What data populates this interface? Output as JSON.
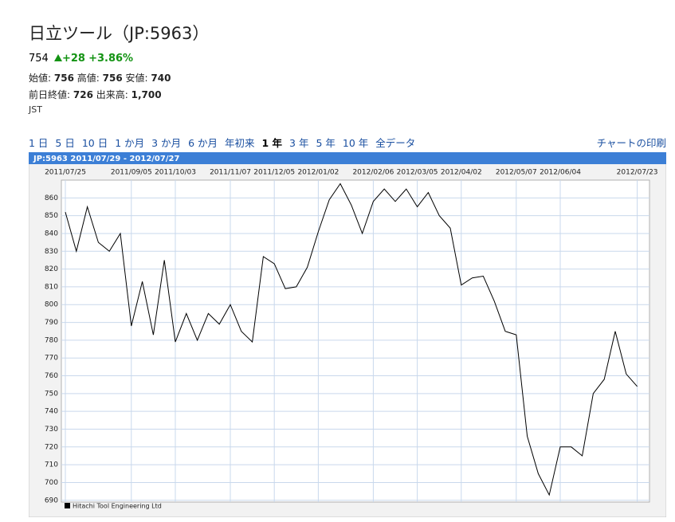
{
  "header": {
    "title": "日立ツール（JP:5963）",
    "price": "754",
    "change": "+28",
    "change_pct": "+3.86%",
    "stats": [
      [
        {
          "label": "始値:",
          "value": "756"
        },
        {
          "label": "高値:",
          "value": "756"
        },
        {
          "label": "安値:",
          "value": "740"
        }
      ],
      [
        {
          "label": "前日終値:",
          "value": "726"
        },
        {
          "label": "出来高:",
          "value": "1,700"
        }
      ]
    ],
    "timezone": "JST"
  },
  "ranges": {
    "items": [
      "1 日",
      "5 日",
      "10 日",
      "1 か月",
      "3 か月",
      "6 か月",
      "年初来",
      "1 年",
      "3 年",
      "5 年",
      "10 年",
      "全データ"
    ],
    "selected": 7,
    "print": "チャートの印刷"
  },
  "chart_data": {
    "type": "line",
    "title": "JP:5963 2011/07/29 - 2012/07/27",
    "x": [
      "2011/07/25",
      "2011/08/01",
      "2011/08/08",
      "2011/08/15",
      "2011/08/22",
      "2011/08/29",
      "2011/09/05",
      "2011/09/12",
      "2011/09/19",
      "2011/09/26",
      "2011/10/03",
      "2011/10/10",
      "2011/10/17",
      "2011/10/24",
      "2011/10/31",
      "2011/11/07",
      "2011/11/14",
      "2011/11/21",
      "2011/11/28",
      "2011/12/05",
      "2011/12/12",
      "2011/12/19",
      "2011/12/26",
      "2012/01/02",
      "2012/01/09",
      "2012/01/16",
      "2012/01/23",
      "2012/01/30",
      "2012/02/06",
      "2012/02/13",
      "2012/02/20",
      "2012/02/27",
      "2012/03/05",
      "2012/03/12",
      "2012/03/19",
      "2012/03/26",
      "2012/04/02",
      "2012/04/09",
      "2012/04/16",
      "2012/04/23",
      "2012/04/30",
      "2012/05/07",
      "2012/05/14",
      "2012/05/21",
      "2012/05/28",
      "2012/06/04",
      "2012/06/11",
      "2012/06/18",
      "2012/06/25",
      "2012/07/02",
      "2012/07/09",
      "2012/07/16",
      "2012/07/23"
    ],
    "series": [
      {
        "name": "Hitachi Tool Engineering Ltd",
        "color": "#000000",
        "values": [
          852,
          830,
          855,
          835,
          830,
          840,
          788,
          813,
          783,
          825,
          779,
          795,
          780,
          795,
          789,
          800,
          785,
          779,
          827,
          823,
          809,
          810,
          821,
          841,
          859,
          868,
          856,
          840,
          858,
          865,
          858,
          865,
          855,
          863,
          850,
          843,
          811,
          815,
          816,
          802,
          785,
          783,
          726,
          705,
          693,
          720,
          720,
          715,
          750,
          758,
          785,
          761,
          754
        ]
      }
    ],
    "xticks": [
      "2011/07/25",
      "2011/09/05",
      "2011/10/03",
      "2011/11/07",
      "2011/12/05",
      "2012/01/02",
      "2012/02/06",
      "2012/03/05",
      "2012/04/02",
      "2012/05/07",
      "2012/06/04",
      "2012/07/23"
    ],
    "ylim": [
      689,
      870
    ],
    "yticks": [
      690,
      700,
      710,
      720,
      730,
      740,
      750,
      760,
      770,
      780,
      790,
      800,
      810,
      820,
      830,
      840,
      850,
      860
    ],
    "grid": true
  }
}
